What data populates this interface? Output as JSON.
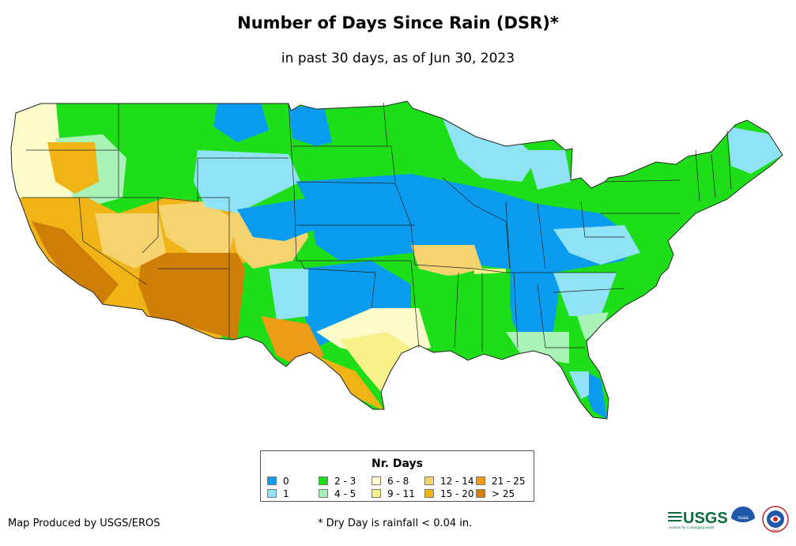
{
  "title": "Number of Days Since Rain (DSR)*",
  "subtitle": "in past 30 days, as of Jun 30, 2023",
  "legend": {
    "title": "Nr. Days",
    "items": [
      {
        "label": "0",
        "color": "#0b9cf0"
      },
      {
        "label": "1",
        "color": "#8fe3f5"
      },
      {
        "label": "2 - 3",
        "color": "#1ede1a"
      },
      {
        "label": "4 - 5",
        "color": "#a9f2b8"
      },
      {
        "label": "6 - 8",
        "color": "#fdfbc9"
      },
      {
        "label": "9 - 11",
        "color": "#f9f28a"
      },
      {
        "label": "12 - 14",
        "color": "#f5d470"
      },
      {
        "label": "15 - 20",
        "color": "#f1b417"
      },
      {
        "label": "21 - 25",
        "color": "#ec9c16"
      },
      {
        "label": "> 25",
        "color": "#cf7e08"
      }
    ]
  },
  "credit": "Map Produced by USGS/EROS",
  "footnote": "* Dry Day is rainfall < 0.04 in.",
  "logos": {
    "usgs": "USGS",
    "usgs_tagline": "science for a changing world",
    "noaa": "noaa",
    "nws": "NWS"
  }
}
